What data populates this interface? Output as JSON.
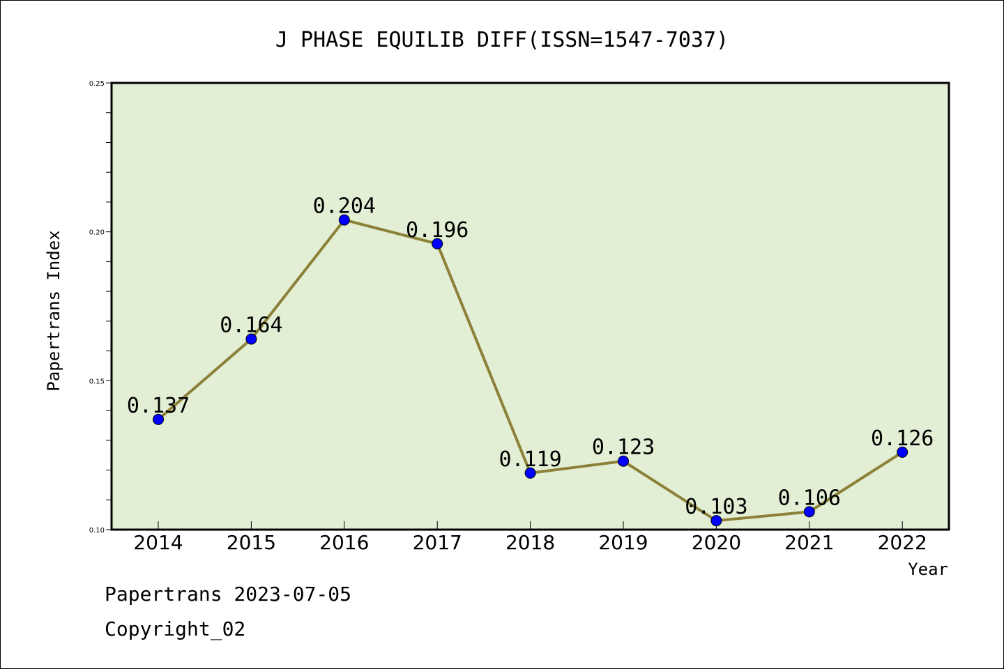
{
  "chart_data": {
    "type": "line",
    "title": "J PHASE EQUILIB DIFF(ISSN=1547-7037)",
    "xlabel": "Year",
    "ylabel": "Papertrans Index",
    "categories": [
      "2014",
      "2015",
      "2016",
      "2017",
      "2018",
      "2019",
      "2020",
      "2021",
      "2022"
    ],
    "values": [
      0.137,
      0.164,
      0.204,
      0.196,
      0.119,
      0.123,
      0.103,
      0.106,
      0.126
    ],
    "data_labels": [
      "0.137",
      "0.164",
      "0.204",
      "0.196",
      "0.119",
      "0.123",
      "0.103",
      "0.106",
      "0.126"
    ],
    "ylim": [
      0.1,
      0.25
    ],
    "y_ticks": [
      "0.10",
      "0.15",
      "0.20",
      "0.25"
    ],
    "grid": false,
    "legend": "none",
    "colors": {
      "plot_bg": "#e2efd5",
      "line": "#8c8038",
      "marker": "#0000ff"
    }
  },
  "footer": {
    "source": "Papertrans 2023-07-05",
    "copyright": "Copyright_02"
  }
}
